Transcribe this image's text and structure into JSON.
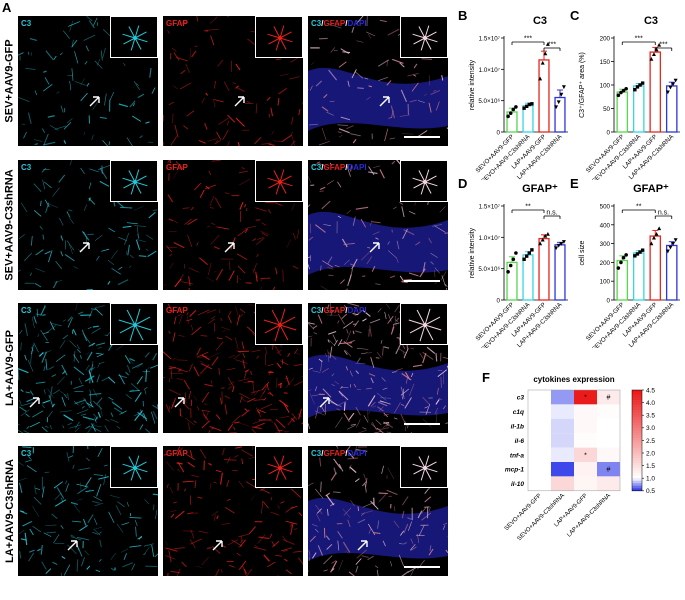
{
  "panels": {
    "a": "A",
    "b": "B",
    "c": "C",
    "d": "D",
    "e": "E",
    "f": "F"
  },
  "micro": {
    "rows": [
      "SEV+AAV9-GFP",
      "SEV+AAV9-C3shRNA",
      "LA+AAV9-GFP",
      "LA+AAV9-C3shRNA"
    ],
    "channels": {
      "c3": "C3",
      "gfap": "GFAP",
      "merge_c3": "C3",
      "merge_slash1": "/",
      "merge_gfap": "GFAP",
      "merge_slash2": "/",
      "merge_dapi": "DAPI"
    },
    "colors": {
      "c3": "#22c8d8",
      "gfap": "#e8201c",
      "dapi": "#2a2ad8"
    }
  },
  "groups": [
    "SEVO+AAV9-GFP",
    "SEVO+AAV9-C3shRNA",
    "LAP+AAV9-GFP",
    "LAP+AAV9-C3shRNA"
  ],
  "group_colors": [
    "#55d84a",
    "#36d6e0",
    "#e8251f",
    "#2d35d8"
  ],
  "chart_data": [
    {
      "panel": "B",
      "type": "bar",
      "title": "C3",
      "ylabel": "relative intensity",
      "yticks": [
        "0",
        "5.0×10⁶",
        "1.0×10⁷",
        "1.5×10⁷"
      ],
      "ylim": [
        0,
        15000000
      ],
      "categories": [
        "SEVO+AAV9-GFP",
        "SEVO+AAV9-C3shRNA",
        "LAP+AAV9-GFP",
        "LAP+AAV9-C3shRNA"
      ],
      "values": [
        3200000,
        4200000,
        11500000,
        5500000
      ],
      "errors": [
        600000,
        400000,
        1400000,
        1200000
      ],
      "points": [
        [
          2500000,
          3000000,
          3600000,
          4000000
        ],
        [
          3800000,
          4100000,
          4400000,
          4500000
        ],
        [
          8500000,
          11000000,
          12500000,
          14000000
        ],
        [
          4000000,
          4800000,
          6000000,
          7200000
        ]
      ],
      "annotations": [
        {
          "from": 0,
          "to": 2,
          "label": "***"
        },
        {
          "from": 2,
          "to": 3,
          "label": "***"
        }
      ]
    },
    {
      "panel": "C",
      "type": "bar",
      "title": "C3",
      "ylabel": "C3⁺/GFAP⁺ area (%)",
      "yticks": [
        "0",
        "50",
        "100",
        "150",
        "200"
      ],
      "ylim": [
        0,
        200
      ],
      "categories": [
        "SEVO+AAV9-GFP",
        "SEVO+AAV9-C3shRNA",
        "LAP+AAV9-GFP",
        "LAP+AAV9-C3shRNA"
      ],
      "values": [
        85,
        98,
        170,
        98
      ],
      "errors": [
        6,
        5,
        10,
        8
      ],
      "points": [
        [
          78,
          84,
          88,
          92
        ],
        [
          90,
          96,
          100,
          104
        ],
        [
          155,
          165,
          175,
          185
        ],
        [
          85,
          95,
          102,
          110
        ]
      ],
      "annotations": [
        {
          "from": 0,
          "to": 2,
          "label": "***"
        },
        {
          "from": 2,
          "to": 3,
          "label": "***"
        }
      ]
    },
    {
      "panel": "D",
      "type": "bar",
      "title": "GFAP⁺",
      "ylabel": "relative intensity",
      "yticks": [
        "0",
        "5.0×10⁶",
        "1.0×10⁷",
        "1.5×10⁷"
      ],
      "ylim": [
        0,
        15000000
      ],
      "categories": [
        "SEVO+AAV9-GFP",
        "SEVO+AAV9-C3shRNA",
        "LAP+AAV9-GFP",
        "LAP+AAV9-C3shRNA"
      ],
      "values": [
        6000000,
        7200000,
        9800000,
        8800000
      ],
      "errors": [
        900000,
        500000,
        600000,
        400000
      ],
      "points": [
        [
          4500000,
          5500000,
          6500000,
          7500000
        ],
        [
          6500000,
          7000000,
          7500000,
          8000000
        ],
        [
          9000000,
          9600000,
          10200000,
          10500000
        ],
        [
          8300000,
          8700000,
          9000000,
          9300000
        ]
      ],
      "annotations": [
        {
          "from": 0,
          "to": 2,
          "label": "**"
        },
        {
          "from": 2,
          "to": 3,
          "label": "n.s."
        }
      ]
    },
    {
      "panel": "E",
      "type": "bar",
      "title": "GFAP⁺",
      "ylabel": "cell size",
      "yticks": [
        "0",
        "100",
        "200",
        "300",
        "400",
        "500"
      ],
      "ylim": [
        0,
        500
      ],
      "categories": [
        "SEVO+AAV9-GFP",
        "SEVO+AAV9-C3shRNA",
        "LAP+AAV9-GFP",
        "LAP+AAV9-C3shRNA"
      ],
      "values": [
        210,
        250,
        340,
        290
      ],
      "errors": [
        25,
        12,
        30,
        20
      ],
      "points": [
        [
          170,
          200,
          225,
          240
        ],
        [
          235,
          245,
          255,
          265
        ],
        [
          300,
          330,
          350,
          380
        ],
        [
          260,
          280,
          300,
          320
        ]
      ],
      "annotations": [
        {
          "from": 0,
          "to": 2,
          "label": "**"
        },
        {
          "from": 2,
          "to": 3,
          "label": "n.s."
        }
      ]
    },
    {
      "panel": "F",
      "type": "heatmap",
      "title": "cytokines expression",
      "rows": [
        "c3",
        "c1q",
        "il-1b",
        "il-6",
        "tnf-a",
        "mcp-1",
        "il-10"
      ],
      "columns": [
        "SEVO+AAV9-GFP",
        "SEVO+AAV9-C3shRNA",
        "LAP+AAV9-GFP",
        "LAP+AAV9-C3shRNA"
      ],
      "values": [
        [
          1.0,
          0.75,
          4.4,
          1.3
        ],
        [
          1.0,
          0.95,
          1.1,
          1.05
        ],
        [
          1.0,
          0.9,
          1.1,
          1.0
        ],
        [
          1.0,
          0.9,
          1.05,
          1.0
        ],
        [
          1.0,
          0.95,
          1.6,
          1.1
        ],
        [
          1.0,
          0.55,
          1.2,
          0.7
        ],
        [
          1.0,
          1.6,
          1.15,
          1.3
        ]
      ],
      "marks": [
        [
          "",
          "",
          "*",
          "#"
        ],
        [
          "",
          "",
          "",
          ""
        ],
        [
          "",
          "",
          "",
          ""
        ],
        [
          "",
          "",
          "",
          ""
        ],
        [
          "",
          "",
          "*",
          ""
        ],
        [
          "",
          "",
          "",
          "#"
        ],
        [
          "",
          "",
          "",
          ""
        ]
      ],
      "colorbar_ticks": [
        "0.5",
        "1.0",
        "1.5",
        "2.0",
        "2.5",
        "3.0",
        "3.5",
        "4.0",
        "4.5"
      ],
      "range": [
        0.5,
        4.5
      ]
    }
  ]
}
